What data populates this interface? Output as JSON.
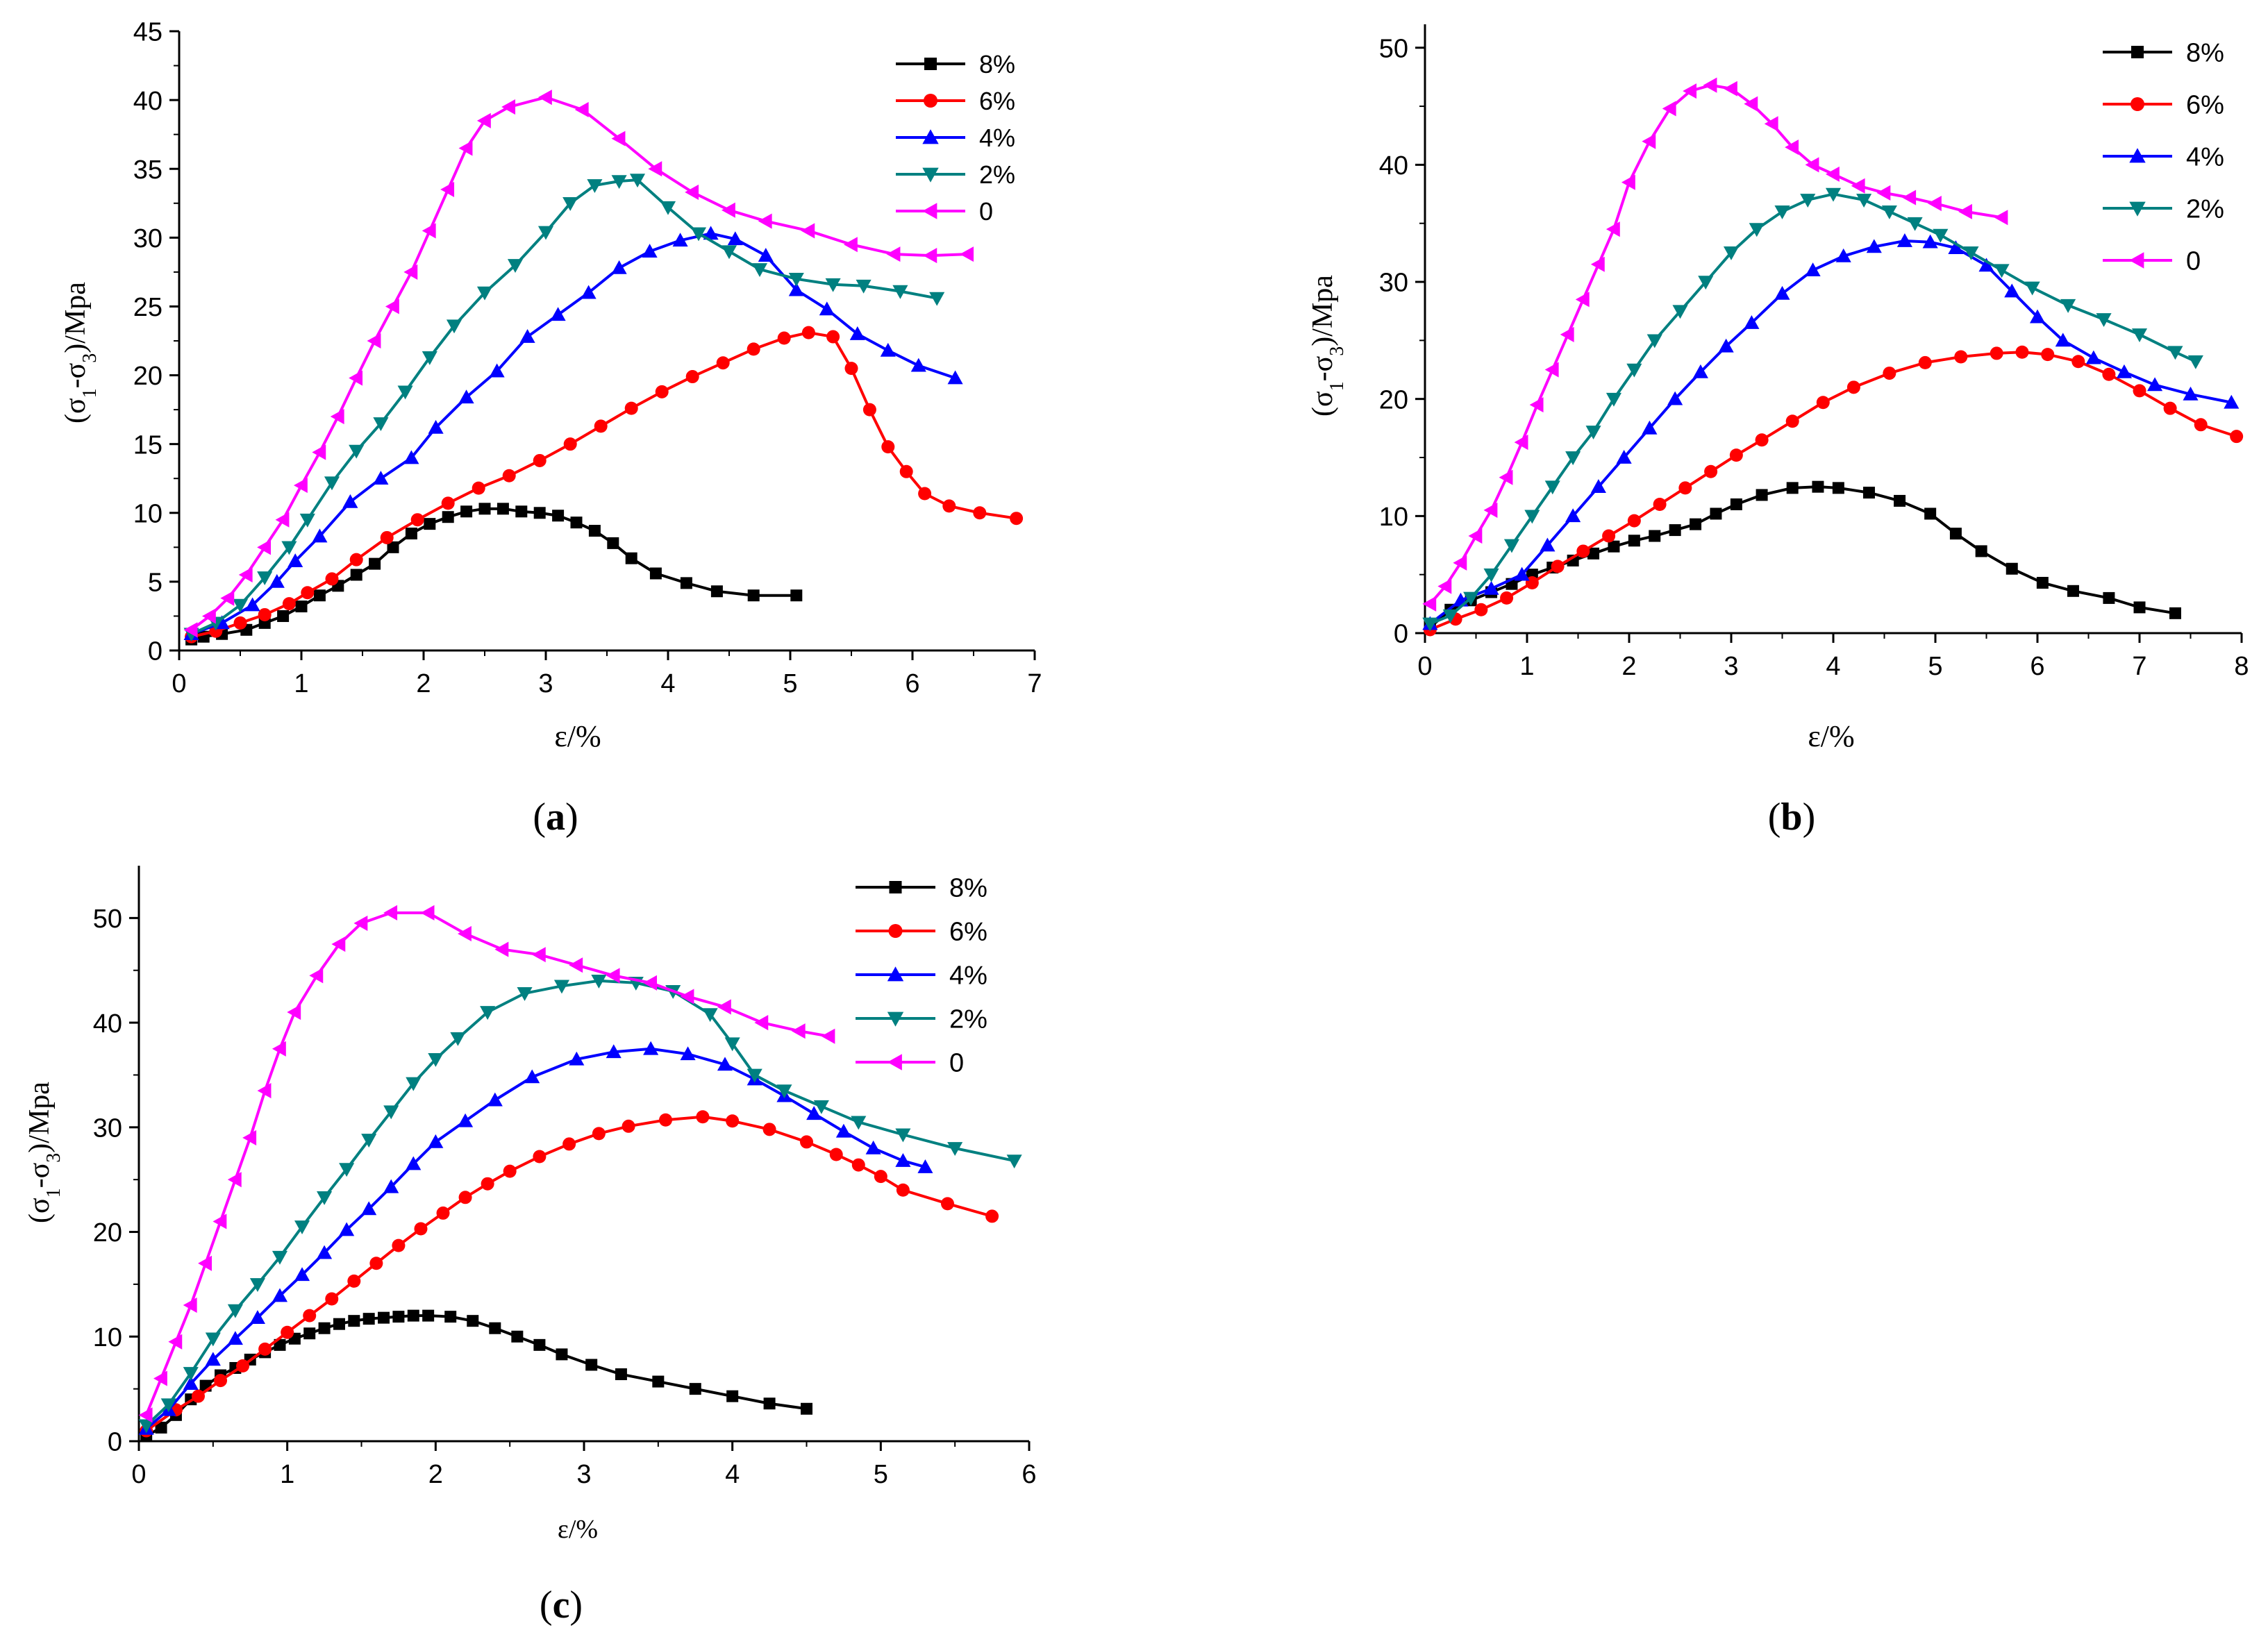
{
  "series_colors": {
    "8%": "#000000",
    "6%": "#ff0000",
    "4%": "#0000ff",
    "2%": "#008080",
    "0": "#ff00ff"
  },
  "series_markers": {
    "8%": "square",
    "6%": "circle",
    "4%": "triangle-up",
    "2%": "triangle-down",
    "0": "triangle-left"
  },
  "chart_data": [
    {
      "type": "line",
      "id": "a",
      "caption": {
        "open": "(",
        "letter": "a",
        "close": ")"
      },
      "xlabel": "ε/%",
      "ylabel": "(σ1-σ3)/Mpa",
      "xlim": [
        0,
        7
      ],
      "ylim": [
        0,
        45
      ],
      "xticks": [
        0,
        1,
        2,
        3,
        4,
        5,
        6,
        7
      ],
      "yticks": [
        0,
        5,
        10,
        15,
        20,
        25,
        30,
        35,
        40,
        45
      ],
      "series": [
        {
          "name": "8%",
          "x": [
            0.1,
            0.2,
            0.35,
            0.55,
            0.7,
            0.85,
            1.0,
            1.15,
            1.3,
            1.45,
            1.6,
            1.75,
            1.9,
            2.05,
            2.2,
            2.35,
            2.5,
            2.65,
            2.8,
            2.95,
            3.1,
            3.25,
            3.4,
            3.55,
            3.7,
            3.9,
            4.15,
            4.4,
            4.7,
            5.05
          ],
          "y": [
            0.8,
            1.0,
            1.2,
            1.5,
            2.0,
            2.5,
            3.2,
            4.0,
            4.7,
            5.5,
            6.3,
            7.5,
            8.5,
            9.2,
            9.7,
            10.1,
            10.3,
            10.3,
            10.1,
            10.0,
            9.8,
            9.3,
            8.7,
            7.8,
            6.7,
            5.6,
            4.9,
            4.3,
            4.0,
            4.0
          ]
        },
        {
          "name": "6%",
          "x": [
            0.1,
            0.3,
            0.5,
            0.7,
            0.9,
            1.05,
            1.25,
            1.45,
            1.7,
            1.95,
            2.2,
            2.45,
            2.7,
            2.95,
            3.2,
            3.45,
            3.7,
            3.95,
            4.2,
            4.45,
            4.7,
            4.95,
            5.15,
            5.35,
            5.5,
            5.65,
            5.8,
            5.95,
            6.1,
            6.3,
            6.55,
            6.85
          ],
          "y": [
            1.0,
            1.4,
            2.0,
            2.6,
            3.4,
            4.2,
            5.2,
            6.6,
            8.2,
            9.5,
            10.7,
            11.8,
            12.7,
            13.8,
            15.0,
            16.3,
            17.6,
            18.8,
            19.9,
            20.9,
            21.9,
            22.7,
            23.1,
            22.8,
            20.5,
            17.5,
            14.8,
            13.0,
            11.4,
            10.5,
            10.0,
            9.6
          ]
        },
        {
          "name": "4%",
          "x": [
            0.1,
            0.35,
            0.6,
            0.8,
            0.95,
            1.15,
            1.4,
            1.65,
            1.9,
            2.1,
            2.35,
            2.6,
            2.85,
            3.1,
            3.35,
            3.6,
            3.85,
            4.1,
            4.35,
            4.55,
            4.8,
            5.05,
            5.3,
            5.55,
            5.8,
            6.05,
            6.35
          ],
          "y": [
            1.2,
            2.0,
            3.3,
            5.0,
            6.5,
            8.3,
            10.8,
            12.5,
            14.0,
            16.2,
            18.4,
            20.3,
            22.8,
            24.4,
            26.0,
            27.8,
            29.0,
            29.8,
            30.3,
            29.9,
            28.7,
            26.2,
            24.8,
            23.0,
            21.8,
            20.7,
            19.8
          ]
        },
        {
          "name": "2%",
          "x": [
            0.1,
            0.3,
            0.5,
            0.7,
            0.9,
            1.05,
            1.25,
            1.45,
            1.65,
            1.85,
            2.05,
            2.25,
            2.5,
            2.75,
            3.0,
            3.2,
            3.4,
            3.6,
            3.75,
            4.0,
            4.25,
            4.5,
            4.75,
            5.05,
            5.35,
            5.6,
            5.9,
            6.2
          ],
          "y": [
            1.2,
            2.0,
            3.3,
            5.3,
            7.5,
            9.5,
            12.2,
            14.5,
            16.5,
            18.8,
            21.3,
            23.6,
            26.0,
            28.0,
            30.4,
            32.5,
            33.8,
            34.1,
            34.2,
            32.2,
            30.3,
            29.0,
            27.7,
            27.0,
            26.6,
            26.5,
            26.1,
            25.6
          ]
        },
        {
          "name": "0",
          "x": [
            0.1,
            0.25,
            0.4,
            0.55,
            0.7,
            0.85,
            1.0,
            1.15,
            1.3,
            1.45,
            1.6,
            1.75,
            1.9,
            2.05,
            2.2,
            2.35,
            2.5,
            2.7,
            3.0,
            3.3,
            3.6,
            3.9,
            4.2,
            4.5,
            4.8,
            5.15,
            5.5,
            5.85,
            6.15,
            6.45
          ],
          "y": [
            1.5,
            2.5,
            3.8,
            5.5,
            7.5,
            9.5,
            12.0,
            14.4,
            17.0,
            19.8,
            22.5,
            25.0,
            27.5,
            30.5,
            33.5,
            36.5,
            38.5,
            39.5,
            40.2,
            39.3,
            37.2,
            35.0,
            33.3,
            32.0,
            31.2,
            30.5,
            29.5,
            28.8,
            28.7,
            28.8
          ]
        }
      ]
    },
    {
      "type": "line",
      "id": "b",
      "caption": {
        "open": "(",
        "letter": "b",
        "close": ")"
      },
      "xlabel": "ε/%",
      "ylabel": "(σ1-σ3)/Mpa",
      "xlim": [
        0,
        8
      ],
      "ylim": [
        0,
        52
      ],
      "xticks": [
        0,
        1,
        2,
        3,
        4,
        5,
        6,
        7,
        8
      ],
      "yticks": [
        0,
        10,
        20,
        30,
        40,
        50
      ],
      "series": [
        {
          "name": "8%",
          "x": [
            0.05,
            0.25,
            0.45,
            0.65,
            0.85,
            1.05,
            1.25,
            1.45,
            1.65,
            1.85,
            2.05,
            2.25,
            2.45,
            2.65,
            2.85,
            3.05,
            3.3,
            3.6,
            3.85,
            4.05,
            4.35,
            4.65,
            4.95,
            5.2,
            5.45,
            5.75,
            6.05,
            6.35,
            6.7,
            7.0,
            7.35
          ],
          "y": [
            0.5,
            2.0,
            2.8,
            3.5,
            4.2,
            5.0,
            5.6,
            6.2,
            6.8,
            7.4,
            7.9,
            8.3,
            8.8,
            9.3,
            10.2,
            11.0,
            11.8,
            12.4,
            12.5,
            12.4,
            12.0,
            11.3,
            10.2,
            8.5,
            7.0,
            5.5,
            4.3,
            3.6,
            3.0,
            2.2,
            1.7
          ]
        },
        {
          "name": "6%",
          "x": [
            0.05,
            0.3,
            0.55,
            0.8,
            1.05,
            1.3,
            1.55,
            1.8,
            2.05,
            2.3,
            2.55,
            2.8,
            3.05,
            3.3,
            3.6,
            3.9,
            4.2,
            4.55,
            4.9,
            5.25,
            5.6,
            5.85,
            6.1,
            6.4,
            6.7,
            7.0,
            7.3,
            7.6,
            7.95
          ],
          "y": [
            0.3,
            1.2,
            2.0,
            3.0,
            4.3,
            5.7,
            7.0,
            8.3,
            9.6,
            11.0,
            12.4,
            13.8,
            15.2,
            16.5,
            18.1,
            19.7,
            21.0,
            22.2,
            23.1,
            23.6,
            23.9,
            24.0,
            23.8,
            23.2,
            22.1,
            20.7,
            19.2,
            17.8,
            16.8
          ]
        },
        {
          "name": "4%",
          "x": [
            0.05,
            0.35,
            0.65,
            0.95,
            1.2,
            1.45,
            1.7,
            1.95,
            2.2,
            2.45,
            2.7,
            2.95,
            3.2,
            3.5,
            3.8,
            4.1,
            4.4,
            4.7,
            4.95,
            5.2,
            5.5,
            5.75,
            6.0,
            6.25,
            6.55,
            6.85,
            7.15,
            7.5,
            7.9
          ],
          "y": [
            0.8,
            2.8,
            3.8,
            5.0,
            7.5,
            10.0,
            12.5,
            15.0,
            17.5,
            20.0,
            22.3,
            24.5,
            26.5,
            29.0,
            31.0,
            32.2,
            33.0,
            33.5,
            33.4,
            32.9,
            31.4,
            29.2,
            27.0,
            25.0,
            23.5,
            22.3,
            21.2,
            20.4,
            19.7
          ]
        },
        {
          "name": "2%",
          "x": [
            0.05,
            0.25,
            0.45,
            0.65,
            0.85,
            1.05,
            1.25,
            1.45,
            1.65,
            1.85,
            2.05,
            2.25,
            2.5,
            2.75,
            3.0,
            3.25,
            3.5,
            3.75,
            4.0,
            4.3,
            4.55,
            4.8,
            5.05,
            5.35,
            5.65,
            5.95,
            6.3,
            6.65,
            7.0,
            7.35,
            7.55
          ],
          "y": [
            0.8,
            1.5,
            3.0,
            5.0,
            7.5,
            10.0,
            12.5,
            15.0,
            17.2,
            20.0,
            22.5,
            25.0,
            27.5,
            30.0,
            32.5,
            34.5,
            36.0,
            37.0,
            37.5,
            37.0,
            36.0,
            35.0,
            34.0,
            32.5,
            31.0,
            29.5,
            28.0,
            26.8,
            25.5,
            24.0,
            23.2
          ]
        },
        {
          "name": "0",
          "x": [
            0.05,
            0.2,
            0.35,
            0.5,
            0.65,
            0.8,
            0.95,
            1.1,
            1.25,
            1.4,
            1.55,
            1.7,
            1.85,
            2.0,
            2.2,
            2.4,
            2.6,
            2.8,
            3.0,
            3.2,
            3.4,
            3.6,
            3.8,
            4.0,
            4.25,
            4.5,
            4.75,
            5.0,
            5.3,
            5.65
          ],
          "y": [
            2.5,
            4.0,
            6.0,
            8.3,
            10.5,
            13.3,
            16.3,
            19.5,
            22.5,
            25.5,
            28.5,
            31.5,
            34.5,
            38.5,
            42.0,
            44.8,
            46.3,
            46.8,
            46.5,
            45.2,
            43.5,
            41.5,
            40.0,
            39.2,
            38.2,
            37.6,
            37.2,
            36.7,
            36.0,
            35.5
          ]
        }
      ]
    },
    {
      "type": "line",
      "id": "c",
      "caption": {
        "open": "(",
        "letter": "c",
        "close": ")"
      },
      "xlabel": "ε/%",
      "ylabel": "(σ1-σ3)/Mpa",
      "xlim": [
        0,
        6
      ],
      "ylim": [
        0,
        55
      ],
      "xticks": [
        0,
        1,
        2,
        3,
        4,
        5,
        6
      ],
      "yticks": [
        0,
        10,
        20,
        30,
        40,
        50
      ],
      "series": [
        {
          "name": "8%",
          "x": [
            0.05,
            0.15,
            0.25,
            0.35,
            0.45,
            0.55,
            0.65,
            0.75,
            0.85,
            0.95,
            1.05,
            1.15,
            1.25,
            1.35,
            1.45,
            1.55,
            1.65,
            1.75,
            1.85,
            1.95,
            2.1,
            2.25,
            2.4,
            2.55,
            2.7,
            2.85,
            3.05,
            3.25,
            3.5,
            3.75,
            4.0,
            4.25,
            4.5
          ],
          "y": [
            0.5,
            1.3,
            2.5,
            4.0,
            5.3,
            6.3,
            7.0,
            7.8,
            8.5,
            9.2,
            9.8,
            10.3,
            10.8,
            11.2,
            11.5,
            11.7,
            11.8,
            11.9,
            12.0,
            12.0,
            11.9,
            11.5,
            10.8,
            10.0,
            9.2,
            8.3,
            7.3,
            6.4,
            5.7,
            5.0,
            4.3,
            3.6,
            3.1
          ]
        },
        {
          "name": "6%",
          "x": [
            0.05,
            0.25,
            0.4,
            0.55,
            0.7,
            0.85,
            1.0,
            1.15,
            1.3,
            1.45,
            1.6,
            1.75,
            1.9,
            2.05,
            2.2,
            2.35,
            2.5,
            2.7,
            2.9,
            3.1,
            3.3,
            3.55,
            3.8,
            4.0,
            4.25,
            4.5,
            4.7,
            4.85,
            5.0,
            5.15,
            5.45,
            5.75
          ],
          "y": [
            1.0,
            3.0,
            4.3,
            5.8,
            7.2,
            8.8,
            10.4,
            12.0,
            13.6,
            15.3,
            17.0,
            18.7,
            20.3,
            21.8,
            23.3,
            24.6,
            25.8,
            27.2,
            28.4,
            29.4,
            30.1,
            30.7,
            31.0,
            30.6,
            29.8,
            28.6,
            27.4,
            26.4,
            25.3,
            24.0,
            22.7,
            21.5
          ]
        },
        {
          "name": "4%",
          "x": [
            0.05,
            0.2,
            0.35,
            0.5,
            0.65,
            0.8,
            0.95,
            1.1,
            1.25,
            1.4,
            1.55,
            1.7,
            1.85,
            2.0,
            2.2,
            2.4,
            2.65,
            2.95,
            3.2,
            3.45,
            3.7,
            3.95,
            4.15,
            4.35,
            4.55,
            4.75,
            4.95,
            5.15,
            5.3
          ],
          "y": [
            1.2,
            3.0,
            5.5,
            7.8,
            9.8,
            11.8,
            13.9,
            15.9,
            18.0,
            20.2,
            22.2,
            24.3,
            26.5,
            28.6,
            30.6,
            32.6,
            34.8,
            36.5,
            37.2,
            37.5,
            37.0,
            36.0,
            34.6,
            33.0,
            31.3,
            29.6,
            28.0,
            26.8,
            26.2
          ]
        },
        {
          "name": "2%",
          "x": [
            0.05,
            0.2,
            0.35,
            0.5,
            0.65,
            0.8,
            0.95,
            1.1,
            1.25,
            1.4,
            1.55,
            1.7,
            1.85,
            2.0,
            2.15,
            2.35,
            2.6,
            2.85,
            3.1,
            3.35,
            3.6,
            3.85,
            4.0,
            4.15,
            4.35,
            4.6,
            4.85,
            5.15,
            5.5,
            5.9
          ],
          "y": [
            1.5,
            3.5,
            6.5,
            9.8,
            12.5,
            15.0,
            17.6,
            20.5,
            23.3,
            26.0,
            28.8,
            31.5,
            34.2,
            36.5,
            38.5,
            41.0,
            42.8,
            43.5,
            44.0,
            43.8,
            43.0,
            40.8,
            38.0,
            35.0,
            33.5,
            32.0,
            30.5,
            29.3,
            28.0,
            26.8
          ]
        },
        {
          "name": "0",
          "x": [
            0.05,
            0.15,
            0.25,
            0.35,
            0.45,
            0.55,
            0.65,
            0.75,
            0.85,
            0.95,
            1.05,
            1.2,
            1.35,
            1.5,
            1.7,
            1.95,
            2.2,
            2.45,
            2.7,
            2.95,
            3.2,
            3.45,
            3.7,
            3.95,
            4.2,
            4.45,
            4.65
          ],
          "y": [
            2.5,
            6.0,
            9.5,
            13.0,
            17.0,
            21.0,
            25.0,
            29.0,
            33.5,
            37.5,
            41.0,
            44.5,
            47.5,
            49.5,
            50.5,
            50.5,
            48.5,
            47.0,
            46.5,
            45.5,
            44.5,
            43.8,
            42.5,
            41.5,
            40.0,
            39.2,
            38.7
          ]
        }
      ]
    }
  ]
}
